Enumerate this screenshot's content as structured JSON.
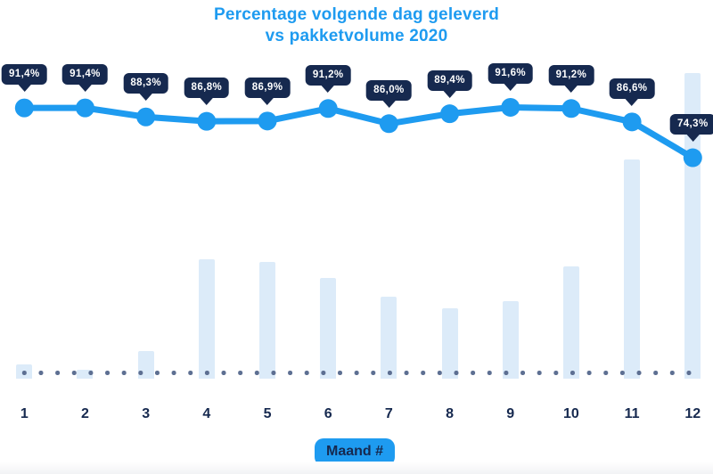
{
  "title": {
    "line1": "Percentage volgende dag geleverd",
    "line2": "vs pakketvolume 2020"
  },
  "x_axis": {
    "badge_label": "Maand #",
    "months": [
      "1",
      "2",
      "3",
      "4",
      "5",
      "6",
      "7",
      "8",
      "9",
      "10",
      "11",
      "12"
    ]
  },
  "chart_data": {
    "type": "combo",
    "title": "Percentage volgende dag geleverd vs pakketvolume 2020",
    "xlabel": "Maand #",
    "ylabel": "",
    "categories": [
      1,
      2,
      3,
      4,
      5,
      6,
      7,
      8,
      9,
      10,
      11,
      12
    ],
    "legend": false,
    "grid": false,
    "baseline_style": "dotted",
    "series": [
      {
        "name": "Percentage volgende dag geleverd",
        "type": "line",
        "unit": "%",
        "values": [
          91.4,
          91.4,
          88.3,
          86.8,
          86.9,
          91.2,
          86.0,
          89.4,
          91.6,
          91.2,
          86.6,
          74.3
        ],
        "labels": [
          "91,4%",
          "91,4%",
          "88,3%",
          "86,8%",
          "86,9%",
          "91,2%",
          "86,0%",
          "89,4%",
          "91,6%",
          "91,2%",
          "86,6%",
          "74,3%"
        ],
        "value_labels_shown": true,
        "color": "#1e9bf0"
      },
      {
        "name": "Pakketvolume 2020",
        "type": "bar",
        "unit": "relative index, max month = 100 (no value axis shown)",
        "values": [
          4.7,
          2.9,
          9.0,
          39.1,
          38.2,
          32.9,
          26.8,
          23.0,
          25.4,
          36.7,
          71.7,
          100
        ],
        "color": "#dcebf9"
      }
    ]
  },
  "colors": {
    "accent": "#1e9bf0",
    "navy": "#16294f",
    "bar": "#dcebf9",
    "dots": "#5d6f92",
    "bg": "#ffffff"
  }
}
